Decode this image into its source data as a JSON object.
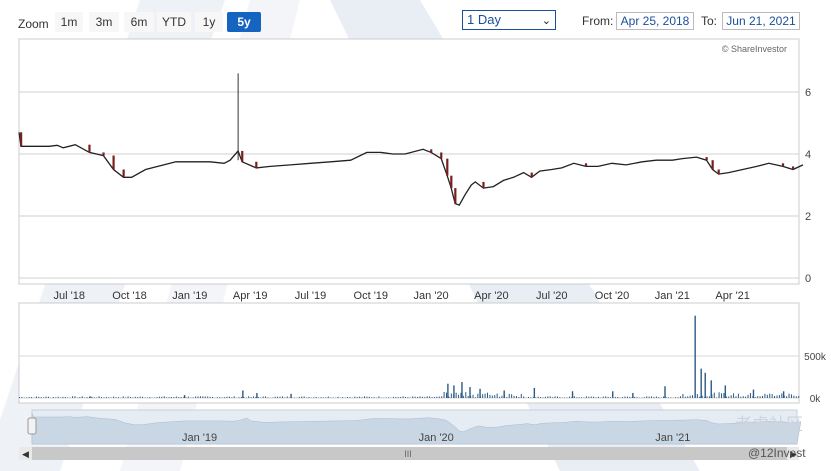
{
  "toolbar": {
    "zoom_label": "Zoom",
    "zoom_buttons": [
      {
        "label": "1m",
        "active": false
      },
      {
        "label": "3m",
        "active": false
      },
      {
        "label": "6m",
        "active": false
      },
      {
        "label": "YTD",
        "active": false
      },
      {
        "label": "1y",
        "active": false
      },
      {
        "label": "5y",
        "active": true
      }
    ],
    "interval_value": "1 Day",
    "from_label": "From:",
    "from_date": "Apr 25, 2018",
    "to_label": "To:",
    "to_date": "Jun 21, 2021"
  },
  "credit": "© ShareInvestor",
  "watermark": {
    "text1": "老虎社区",
    "text2": "@12Invest"
  },
  "colors": {
    "accent": "#1565c0",
    "price_line": "#222222",
    "down_candle": "#7a1f1f",
    "volume": "#2b5a86"
  },
  "chart_data": [
    {
      "type": "line",
      "x_start": "Apr 2018",
      "x_end": "Jun 2021",
      "ylim": [
        0,
        7
      ],
      "yticks": [
        "0",
        "2",
        "4",
        "6"
      ],
      "xticks": [
        "Jul '18",
        "Oct '18",
        "Jan '19",
        "Apr '19",
        "Jul '19",
        "Oct '19",
        "Jan '20",
        "Apr '20",
        "Jul '20",
        "Oct '20",
        "Jan '21",
        "Apr '21"
      ],
      "x": [
        0,
        3,
        6,
        9,
        12,
        15,
        18,
        21,
        24,
        27,
        30,
        33,
        36,
        38
      ],
      "values": [
        4.3,
        4.25,
        4.2,
        4.0,
        3.3,
        3.6,
        3.85,
        3.65,
        3.8,
        3.9,
        4.1,
        2.3,
        3.5,
        3.7
      ],
      "series_points": [
        [
          0,
          4.7
        ],
        [
          0.1,
          4.25
        ],
        [
          0.5,
          4.25
        ],
        [
          1.5,
          4.25
        ],
        [
          1.9,
          4.28
        ],
        [
          2.2,
          4.2
        ],
        [
          2.8,
          4.3
        ],
        [
          3.5,
          4.05
        ],
        [
          4.2,
          3.95
        ],
        [
          4.7,
          3.5
        ],
        [
          5.2,
          3.25
        ],
        [
          5.6,
          3.25
        ],
        [
          6.3,
          3.5
        ],
        [
          7.2,
          3.65
        ],
        [
          7.8,
          3.75
        ],
        [
          8.5,
          3.75
        ],
        [
          9.5,
          3.75
        ],
        [
          10.2,
          3.7
        ],
        [
          10.5,
          3.8
        ],
        [
          10.9,
          4.1
        ],
        [
          11.1,
          3.75
        ],
        [
          11.8,
          3.55
        ],
        [
          12.5,
          3.6
        ],
        [
          13.5,
          3.65
        ],
        [
          14.5,
          3.7
        ],
        [
          15.5,
          3.75
        ],
        [
          16.5,
          3.8
        ],
        [
          17.3,
          4.05
        ],
        [
          18,
          4.05
        ],
        [
          18.6,
          4.0
        ],
        [
          19.2,
          4.0
        ],
        [
          20.1,
          4.15
        ],
        [
          20.5,
          4.05
        ],
        [
          21,
          3.85
        ],
        [
          21.3,
          3.3
        ],
        [
          21.5,
          2.9
        ],
        [
          21.7,
          2.4
        ],
        [
          21.9,
          2.35
        ],
        [
          22.2,
          2.7
        ],
        [
          22.5,
          3.0
        ],
        [
          22.7,
          3.1
        ],
        [
          23.1,
          2.9
        ],
        [
          23.6,
          2.95
        ],
        [
          24.1,
          3.15
        ],
        [
          24.6,
          3.25
        ],
        [
          25.1,
          3.4
        ],
        [
          25.5,
          3.25
        ],
        [
          25.9,
          3.45
        ],
        [
          26.5,
          3.5
        ],
        [
          27,
          3.55
        ],
        [
          27.6,
          3.7
        ],
        [
          28.2,
          3.6
        ],
        [
          28.8,
          3.6
        ],
        [
          29.5,
          3.7
        ],
        [
          30.2,
          3.65
        ],
        [
          31,
          3.75
        ],
        [
          31.7,
          3.8
        ],
        [
          32.5,
          3.8
        ],
        [
          33,
          3.85
        ],
        [
          33.7,
          3.9
        ],
        [
          34.2,
          3.8
        ],
        [
          34.5,
          3.5
        ],
        [
          34.8,
          3.35
        ],
        [
          35.3,
          3.4
        ],
        [
          36,
          3.5
        ],
        [
          36.7,
          3.6
        ],
        [
          37.3,
          3.7
        ],
        [
          38,
          3.6
        ],
        [
          38.5,
          3.5
        ],
        [
          39,
          3.65
        ]
      ],
      "spike": {
        "x": 10.9,
        "high": 6.6
      }
    },
    {
      "type": "bar",
      "ylabel": "",
      "ylim": [
        0,
        1000000
      ],
      "yticks": [
        "0k",
        "500k"
      ],
      "spikes": [
        [
          3.5,
          20000
        ],
        [
          8.2,
          35000
        ],
        [
          11.1,
          90000
        ],
        [
          11.8,
          60000
        ],
        [
          13.5,
          50000
        ],
        [
          21.3,
          170000
        ],
        [
          21.6,
          150000
        ],
        [
          22.0,
          190000
        ],
        [
          22.4,
          130000
        ],
        [
          22.9,
          110000
        ],
        [
          24.1,
          90000
        ],
        [
          25.6,
          120000
        ],
        [
          27.5,
          80000
        ],
        [
          29.5,
          80000
        ],
        [
          30.5,
          60000
        ],
        [
          32.1,
          140000
        ],
        [
          33.6,
          980000
        ],
        [
          33.9,
          350000
        ],
        [
          34.1,
          300000
        ],
        [
          34.4,
          210000
        ],
        [
          35.1,
          150000
        ],
        [
          36.5,
          100000
        ],
        [
          38.0,
          80000
        ]
      ]
    }
  ],
  "navigator": {
    "labels": [
      "Jan '19",
      "Jan '20",
      "Jan '21"
    ],
    "scroll_grip": "III"
  }
}
